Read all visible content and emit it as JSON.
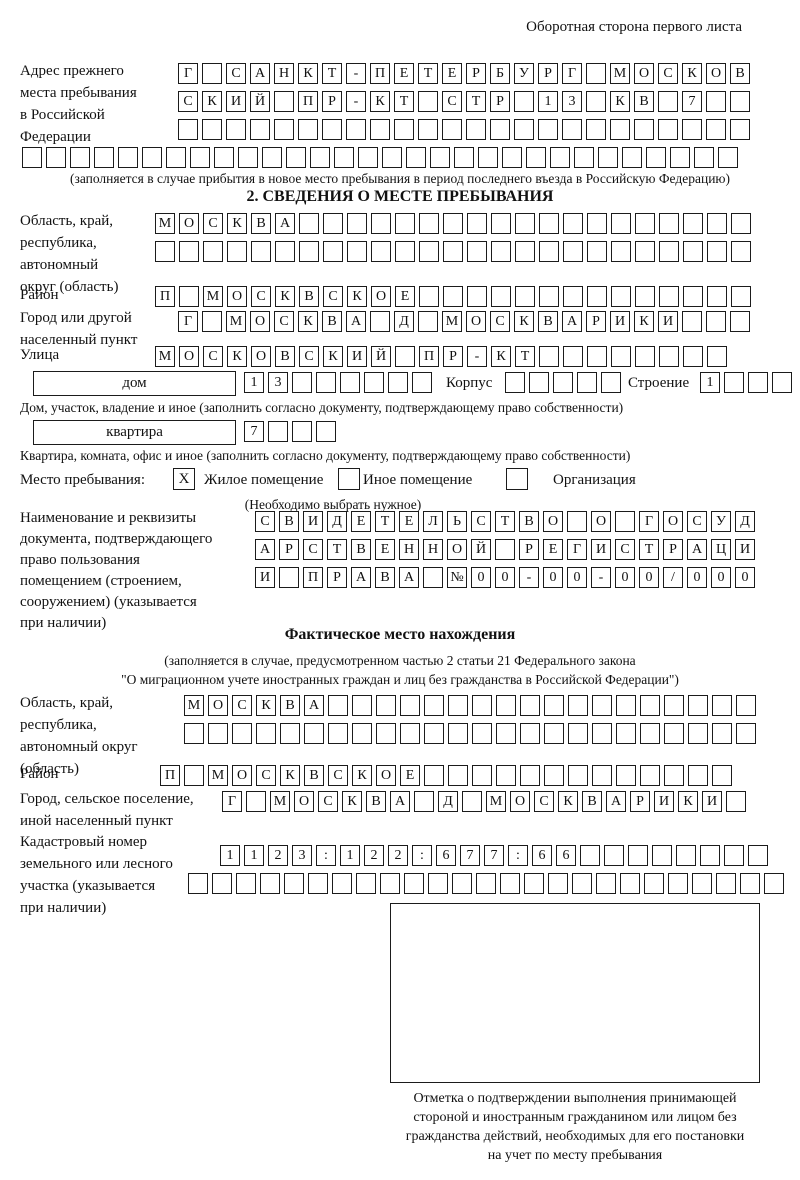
{
  "header": {
    "note": "Оборотная сторона первого листа"
  },
  "prev_address": {
    "label": "Адрес прежнего\nместа пребывания\nв Российской\nФедерации",
    "row1": "Г САНКТ-ПЕТЕРБУРГ МОСКОВ",
    "row2": "СКИЙ ПР-КТ СТР 13 КВ 7  ",
    "row3": "                        ",
    "row4": "                              ",
    "note": "(заполняется в случае прибытия в новое место пребывания в период последнего въезда в Российскую Федерацию)"
  },
  "section2": {
    "title": "2. СВЕДЕНИЯ О МЕСТЕ ПРЕБЫВАНИЯ",
    "region": {
      "label": "Область, край,\nреспублика,\nавтономный\nокруг (область)",
      "row1": "МОСКВА                   ",
      "row2": "                         "
    },
    "district": {
      "label": "Район",
      "row": "П МОСКВСКОЕ              "
    },
    "city": {
      "label": "Город или другой\nнаселенный пункт",
      "row": "Г МОСКВА Д МОСКВАРИКИ   "
    },
    "street": {
      "label": "Улица",
      "row": "МОСКОВСКИЙ ПР-КТ        "
    },
    "house": {
      "box_label": "дом",
      "cells": "13      ",
      "korpus_label": "Корпус",
      "korpus_cells": "     ",
      "stroenie_label": "Строение",
      "stroenie_cells": "1   ",
      "note": "Дом, участок, владение и иное (заполнить согласно документу, подтверждающему право собственности)"
    },
    "apartment": {
      "box_label": "квартира",
      "cells": "7   ",
      "note": "Квартира, комната, офис и иное (заполнить согласно документу, подтверждающему право собственности)"
    },
    "occupancy": {
      "label": "Место пребывания:",
      "options": [
        {
          "label": "Жилое помещение",
          "mark": "X"
        },
        {
          "label": "Иное помещение",
          "mark": ""
        },
        {
          "label": "Организация",
          "mark": ""
        }
      ],
      "hint": "(Необходимо выбрать нужное)"
    },
    "document": {
      "label": "Наименование и реквизиты\nдокумента, подтверждающего\nправо пользования\nпомещением (строением,\nсооружением) (указывается\nпри наличии)",
      "row1": "СВИДЕТЕЛЬСТВО О ГОСУД",
      "row2": "АРСТВЕННОЙ РЕГИСТРАЦИ",
      "row3": "И ПРАВА №00-00-00/000"
    }
  },
  "actual_location": {
    "title": "Фактическое место нахождения",
    "note": "(заполняется в случае, предусмотренном частью 2 статьи 21 Федерального закона\n\"О миграционном учете иностранных граждан и лиц без гражданства в Российской Федерации\")",
    "region": {
      "label": "Область, край,\nреспублика,\nавтономный округ\n(область)",
      "row1": "МОСКВА                  ",
      "row2": "                        "
    },
    "district": {
      "label": "Район",
      "row": "П МОСКВСКОЕ             "
    },
    "city": {
      "label": "Город, сельское поселение,\nиной населенный пункт",
      "row": "Г МОСКВА Д МОСКВАРИКИ "
    },
    "cadastre": {
      "label": "Кадастровый номер\nземельного или лесного\nучастка (указывается\nпри наличии)",
      "row1": "1123:122:677:66        ",
      "row2": "                         "
    },
    "stamp_caption": "Отметка о подтверждении выполнения принимающей\nстороной и иностранным гражданином или лицом без\nгражданства действий, необходимых для его постановки\nна учет по месту пребывания"
  }
}
